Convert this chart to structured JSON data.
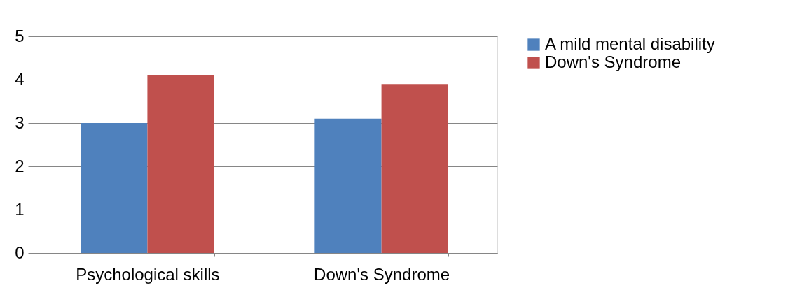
{
  "chart_data": {
    "type": "bar",
    "categories": [
      "Psychological skills",
      "Down's Syndrome"
    ],
    "series": [
      {
        "name": "A mild mental disability",
        "color": "#4f81bd",
        "values": [
          3.0,
          3.1
        ]
      },
      {
        "name": "Down's Syndrome",
        "color": "#c0504d",
        "values": [
          4.1,
          3.9
        ]
      }
    ],
    "ylim": [
      0,
      5
    ],
    "yticks": [
      0,
      1,
      2,
      3,
      4,
      5
    ],
    "grid": "y",
    "legend": "right"
  }
}
